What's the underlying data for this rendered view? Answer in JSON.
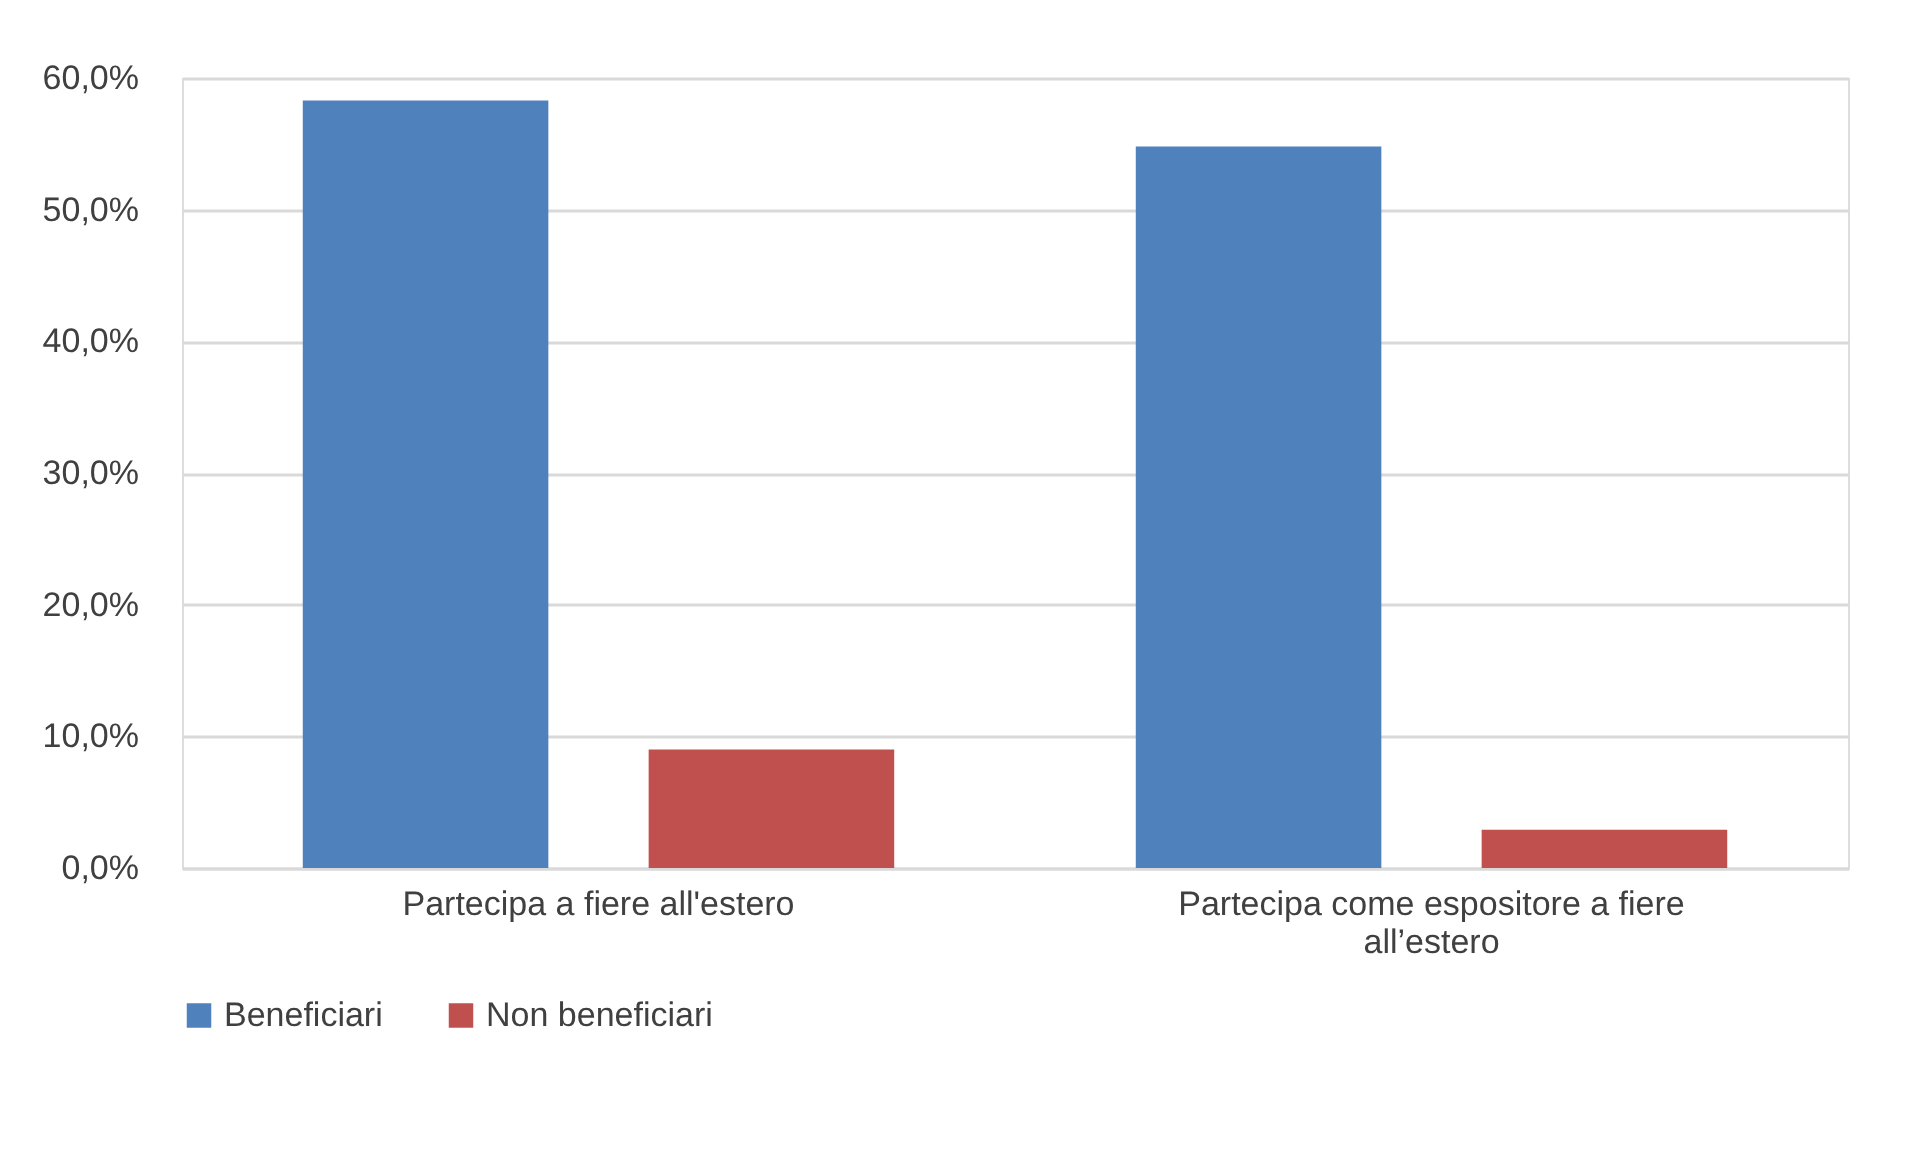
{
  "chart_data": {
    "type": "bar",
    "categories": [
      "Partecipa a fiere all'estero",
      "Partecipa come espositore a fiere all’estero"
    ],
    "series": [
      {
        "name": "Beneficiari",
        "color": "#4f81bd",
        "values": [
          58.3,
          54.8
        ]
      },
      {
        "name": "Non beneficiari",
        "color": "#c0504d",
        "values": [
          9.0,
          2.9
        ]
      }
    ],
    "ylim": [
      0,
      60
    ],
    "yticks": [
      {
        "value": 0,
        "label": "0,0%"
      },
      {
        "value": 10,
        "label": "10,0%"
      },
      {
        "value": 20,
        "label": "20,0%"
      },
      {
        "value": 30,
        "label": "30,0%"
      },
      {
        "value": 40,
        "label": "40,0%"
      },
      {
        "value": 50,
        "label": "50,0%"
      },
      {
        "value": 60,
        "label": "60,0%"
      }
    ],
    "grid": "y",
    "legend": "bottom"
  }
}
